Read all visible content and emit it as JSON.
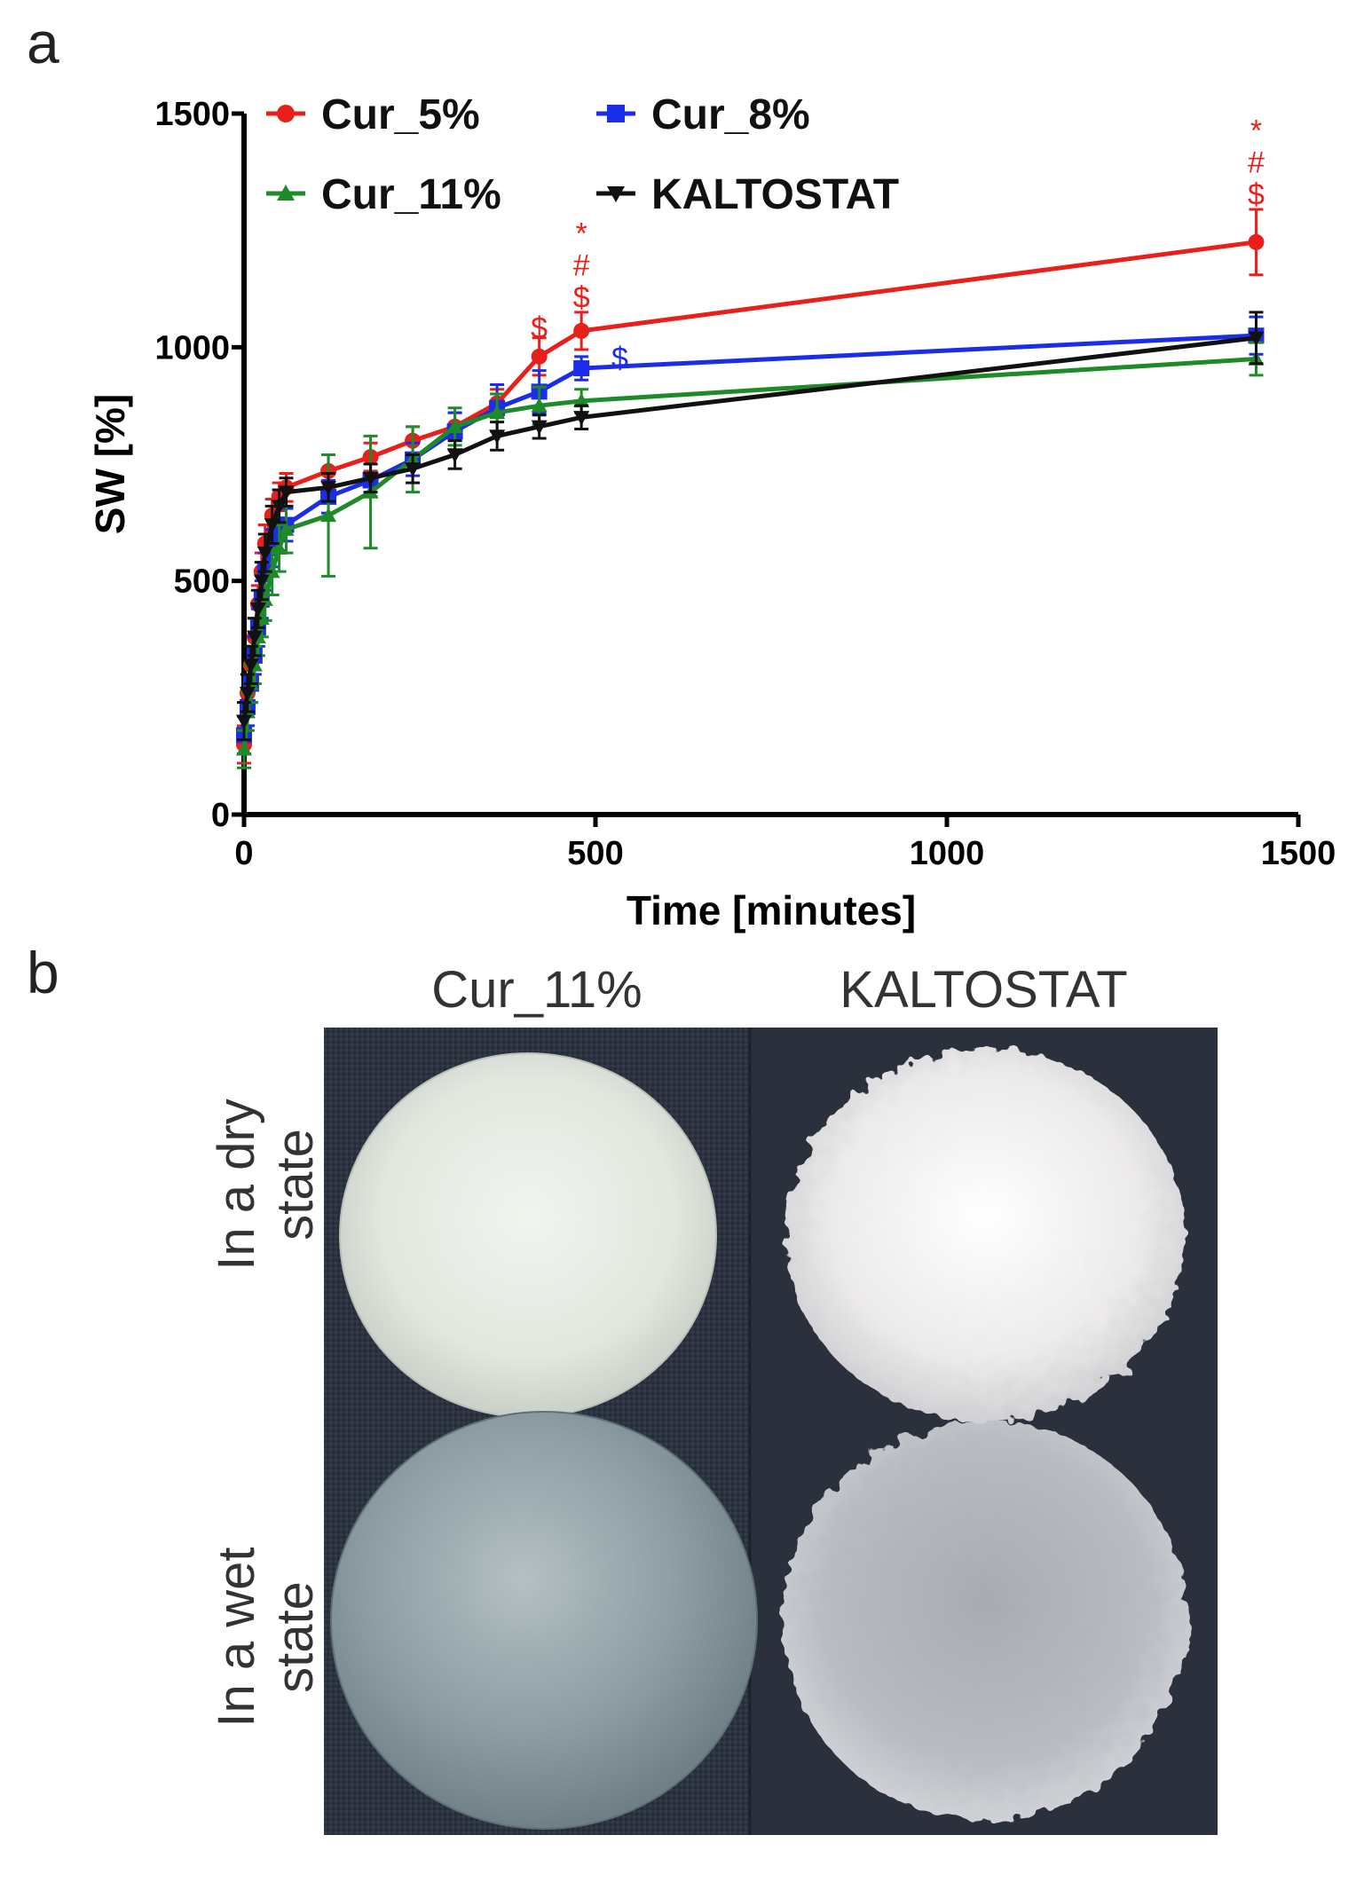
{
  "panels": {
    "a": "a",
    "b": "b"
  },
  "chart_data": {
    "type": "line",
    "xlabel": "Time [minutes]",
    "ylabel": "SW [%]",
    "xlim": [
      0,
      1500
    ],
    "ylim": [
      0,
      1500
    ],
    "xticks": [
      0,
      500,
      1000,
      1500
    ],
    "yticks": [
      0,
      500,
      1000,
      1500
    ],
    "grid": false,
    "legend_position": "top-left, two columns",
    "series": [
      {
        "name": "Cur_5%",
        "color": "#e8201c",
        "marker": "circle",
        "x": [
          0,
          5,
          10,
          15,
          20,
          25,
          30,
          40,
          50,
          60,
          120,
          180,
          240,
          300,
          360,
          420,
          480,
          1440
        ],
        "y": [
          150,
          260,
          320,
          380,
          450,
          520,
          580,
          640,
          680,
          700,
          735,
          765,
          800,
          830,
          880,
          980,
          1035,
          1225
        ],
        "err": [
          40,
          40,
          40,
          40,
          40,
          40,
          40,
          35,
          30,
          30,
          35,
          30,
          30,
          30,
          30,
          40,
          40,
          70
        ]
      },
      {
        "name": "Cur_8%",
        "color": "#1c2de8",
        "marker": "square",
        "x": [
          0,
          5,
          10,
          15,
          20,
          25,
          30,
          40,
          50,
          60,
          120,
          180,
          240,
          300,
          360,
          420,
          480,
          1440
        ],
        "y": [
          170,
          230,
          280,
          340,
          400,
          460,
          520,
          570,
          600,
          620,
          680,
          715,
          760,
          820,
          870,
          905,
          955,
          1025
        ],
        "err": [
          40,
          40,
          40,
          40,
          40,
          40,
          40,
          40,
          35,
          35,
          35,
          35,
          35,
          40,
          50,
          45,
          25,
          40
        ]
      },
      {
        "name": "Cur_11%",
        "color": "#1f8a2a",
        "marker": "triangle-up",
        "x": [
          0,
          5,
          10,
          15,
          20,
          25,
          30,
          40,
          50,
          60,
          120,
          180,
          240,
          300,
          360,
          420,
          480,
          1440
        ],
        "y": [
          140,
          220,
          280,
          320,
          380,
          420,
          460,
          520,
          570,
          610,
          640,
          690,
          760,
          830,
          860,
          875,
          885,
          975
        ],
        "err": [
          40,
          40,
          40,
          40,
          40,
          40,
          45,
          50,
          50,
          50,
          130,
          120,
          70,
          40,
          40,
          40,
          25,
          35
        ]
      },
      {
        "name": "KALTOSTAT",
        "color": "#111111",
        "marker": "triangle-down",
        "x": [
          0,
          5,
          10,
          15,
          20,
          25,
          30,
          40,
          50,
          60,
          120,
          180,
          240,
          300,
          360,
          420,
          480,
          1440
        ],
        "y": [
          200,
          260,
          320,
          380,
          440,
          500,
          560,
          620,
          660,
          690,
          700,
          720,
          740,
          770,
          810,
          830,
          850,
          1020
        ],
        "err": [
          40,
          40,
          40,
          40,
          40,
          40,
          40,
          40,
          35,
          30,
          30,
          30,
          30,
          30,
          30,
          25,
          25,
          55
        ]
      }
    ],
    "annotations": [
      {
        "x": 420,
        "y": 1020,
        "lines": [
          "$"
        ],
        "color": "#e8201c"
      },
      {
        "x": 480,
        "y": 1085,
        "lines": [
          "$",
          "#",
          "*"
        ],
        "color": "#e8201c"
      },
      {
        "x": 495,
        "y": 955,
        "lines": [
          "$"
        ],
        "color": "#1c2de8",
        "side": "right"
      },
      {
        "x": 1440,
        "y": 1305,
        "lines": [
          "$",
          "#",
          "*"
        ],
        "color": "#e8201c"
      }
    ]
  },
  "panel_b": {
    "columns": [
      "Cur_11%",
      "KALTOSTAT"
    ],
    "rows": [
      {
        "line1": "In a dry",
        "line2": "state"
      },
      {
        "line1": "In a wet",
        "line2": "state"
      }
    ]
  }
}
